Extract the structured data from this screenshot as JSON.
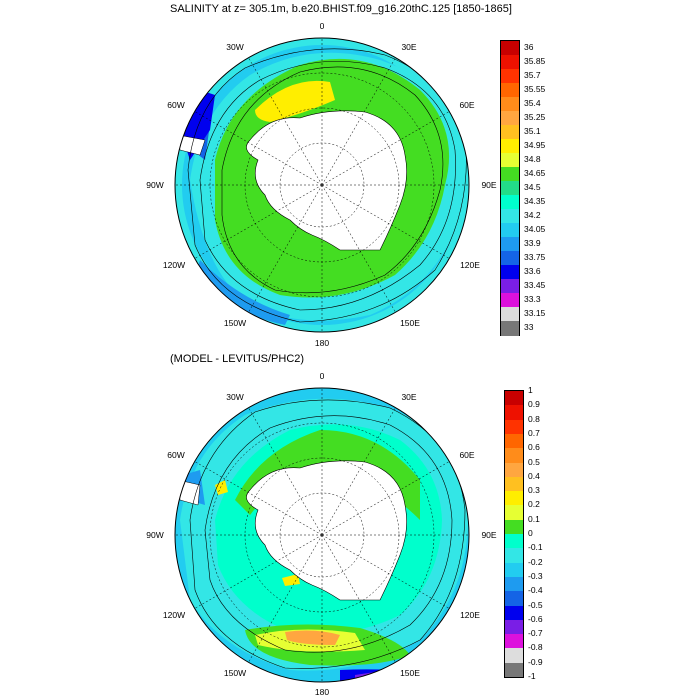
{
  "panels": [
    {
      "title": "SALINITY at z= 305.1m, b.e20.BHIST.f09_g16.20thC.125 [1850-1865]",
      "lon_labels": [
        "0",
        "30E",
        "60E",
        "90E",
        "120E",
        "150E",
        "180",
        "150W",
        "120W",
        "90W",
        "60W",
        "30W"
      ],
      "colorbar": {
        "labels": [
          "36",
          "35.85",
          "35.7",
          "35.55",
          "35.4",
          "35.25",
          "35.1",
          "34.95",
          "34.8",
          "34.65",
          "34.5",
          "34.35",
          "34.2",
          "34.05",
          "33.9",
          "33.75",
          "33.6",
          "33.45",
          "33.3",
          "33.15",
          "33"
        ],
        "colors": [
          "#c80000",
          "#ee1100",
          "#ff3300",
          "#ff6600",
          "#ff8c1a",
          "#ffa640",
          "#ffc020",
          "#ffee00",
          "#e6ff33",
          "#44dd22",
          "#22dd88",
          "#00ffcc",
          "#33e6e6",
          "#22ccf0",
          "#1e9bf0",
          "#1464e6",
          "#0000ee",
          "#7a1ee6",
          "#dd11dd",
          "#dddddd",
          "#777777"
        ]
      }
    },
    {
      "title": "(MODEL - LEVITUS/PHC2)",
      "lon_labels": [
        "0",
        "30E",
        "60E",
        "90E",
        "120E",
        "150E",
        "180",
        "150W",
        "120W",
        "90W",
        "60W",
        "30W"
      ],
      "colorbar": {
        "labels": [
          "1",
          "0.9",
          "0.8",
          "0.7",
          "0.6",
          "0.5",
          "0.4",
          "0.3",
          "0.2",
          "0.1",
          "0",
          "-0.1",
          "-0.2",
          "-0.3",
          "-0.4",
          "-0.5",
          "-0.6",
          "-0.7",
          "-0.8",
          "-0.9",
          "-1"
        ],
        "colors": [
          "#c80000",
          "#ee1100",
          "#ff3300",
          "#ff6600",
          "#ff8c1a",
          "#ffa640",
          "#ffc020",
          "#ffee00",
          "#e6ff33",
          "#44dd22",
          "#00ffcc",
          "#33e6e6",
          "#22ccf0",
          "#1e9bf0",
          "#1464e6",
          "#0000ee",
          "#7a1ee6",
          "#dd11dd",
          "#dddddd",
          "#777777"
        ]
      }
    }
  ]
}
